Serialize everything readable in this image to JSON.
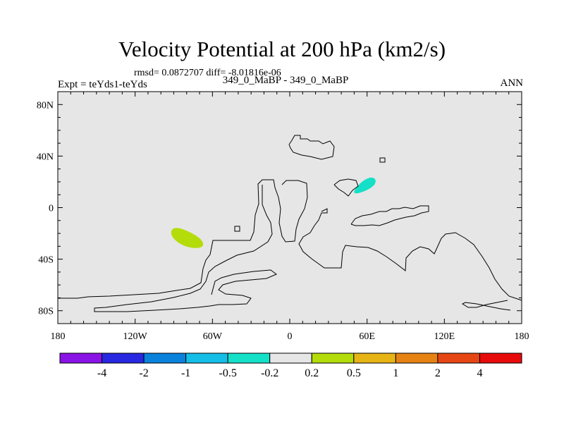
{
  "chart_data": {
    "type": "contour-map",
    "title": "Velocity Potential at 200 hPa (km2/s)",
    "stats_text": "rmsd= 0.0872707 diff= -8.01816e-06",
    "left_label": "Expt = teYds1-teYds",
    "center_label": "349_0_MaBP - 349_0_MaBP",
    "right_label": "ANN",
    "x_range": [
      -180,
      180
    ],
    "y_range": [
      -90,
      90
    ],
    "x_ticks": [
      {
        "value": -180,
        "label": "180"
      },
      {
        "value": -120,
        "label": "120W"
      },
      {
        "value": -60,
        "label": "60W"
      },
      {
        "value": 0,
        "label": "0"
      },
      {
        "value": 60,
        "label": "60E"
      },
      {
        "value": 120,
        "label": "120E"
      },
      {
        "value": 180,
        "label": "180"
      }
    ],
    "y_ticks": [
      {
        "value": 80,
        "label": "80N"
      },
      {
        "value": 40,
        "label": "40N"
      },
      {
        "value": 0,
        "label": "0"
      },
      {
        "value": -40,
        "label": "40S"
      },
      {
        "value": -80,
        "label": "80S"
      }
    ],
    "background_color": "#e6e6e6",
    "colorbar": {
      "colors": [
        "#8a14e6",
        "#2828e0",
        "#0a82dc",
        "#14bee6",
        "#14e0c8",
        "#e6e6e6",
        "#b4dc0a",
        "#e6b414",
        "#e68214",
        "#e64614",
        "#e60a0a"
      ],
      "labels": [
        "-4",
        "-2",
        "-1",
        "-0.5",
        "-0.2",
        "0.2",
        "0.5",
        "1",
        "2",
        "4"
      ]
    },
    "anomalies": [
      {
        "name": "positive-anomaly-south-pacific",
        "lon": -87,
        "lat": -23,
        "range": "0.2 to 0.5",
        "color": "#b4dc0a"
      },
      {
        "name": "negative-anomaly-central-asia",
        "lon": 57,
        "lat": 17,
        "range": "-0.5 to -0.2",
        "color": "#14e0c8"
      }
    ]
  }
}
